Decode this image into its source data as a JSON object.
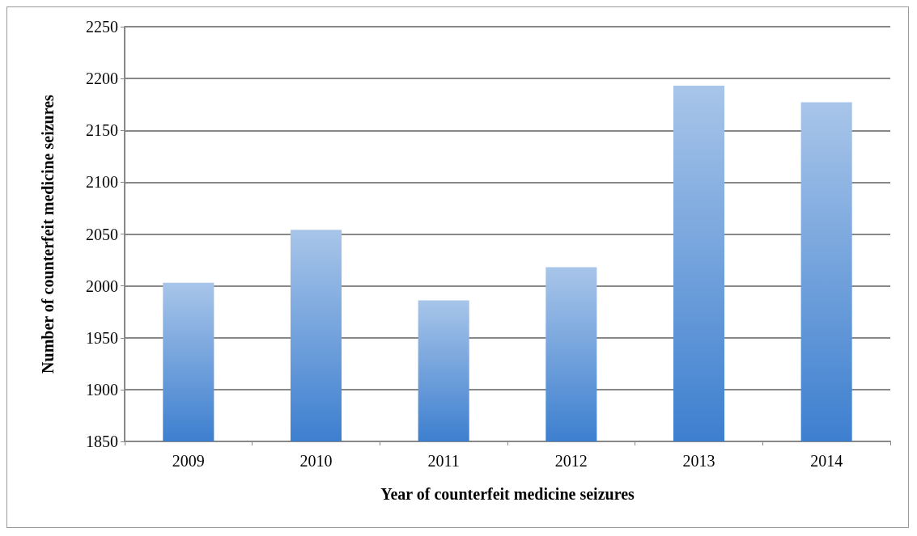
{
  "chart_data": {
    "type": "bar",
    "xlabel": "Year of counterfeit medicine seizures",
    "ylabel": "Number of counterfeit medicine seizures",
    "categories": [
      "2009",
      "2010",
      "2011",
      "2012",
      "2013",
      "2014"
    ],
    "values": [
      2003,
      2054,
      1986,
      2018,
      2193,
      2177
    ],
    "color": "#3d7fcf",
    "ylim": [
      1850,
      2250
    ],
    "yticks": [
      1850,
      1900,
      1950,
      2000,
      2050,
      2100,
      2150,
      2200,
      2250
    ],
    "grid": "y"
  }
}
